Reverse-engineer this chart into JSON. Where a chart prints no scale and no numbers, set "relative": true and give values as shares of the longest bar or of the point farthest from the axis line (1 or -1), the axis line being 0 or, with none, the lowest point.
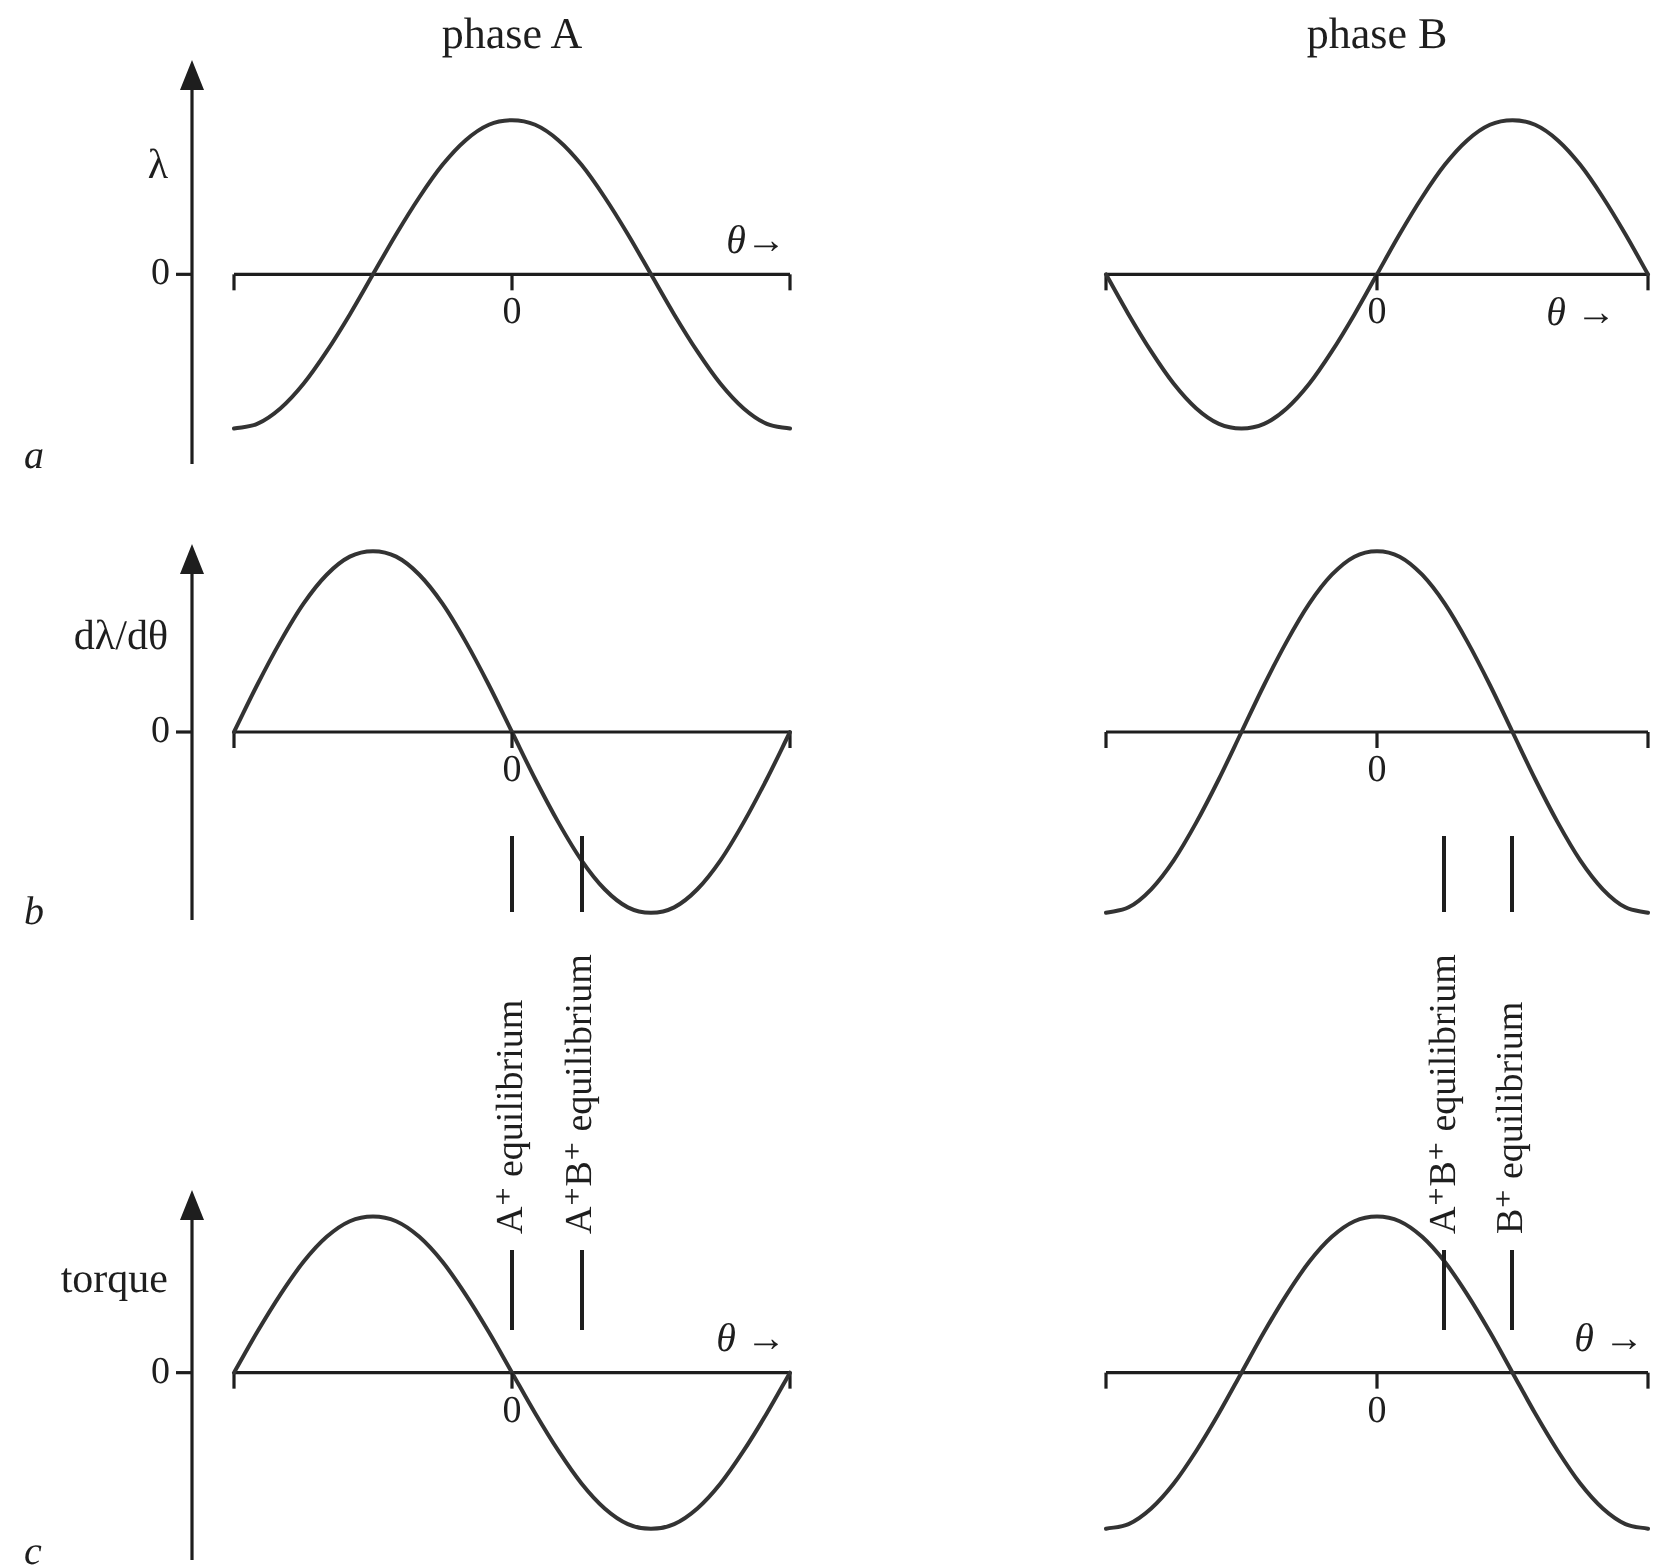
{
  "chart_data": [
    {
      "type": "line",
      "title": "phase A",
      "xlabel": "θ→",
      "ylabel": "λ",
      "annotations": [
        "a",
        "0",
        "0"
      ],
      "relative": true,
      "categories": [
        null,
        null,
        null,
        null,
        null,
        null,
        null,
        null,
        null,
        null,
        null,
        null,
        null,
        null,
        null,
        null,
        null,
        null,
        null,
        null,
        null,
        null,
        null,
        null,
        null
      ],
      "values": [
        -1,
        -0.97,
        -0.87,
        -0.71,
        -0.5,
        -0.26,
        0,
        0.26,
        0.5,
        0.71,
        0.87,
        0.97,
        1,
        0.97,
        0.87,
        0.71,
        0.5,
        0.26,
        0,
        -0.26,
        -0.5,
        -0.71,
        -0.87,
        -0.97,
        -1
      ],
      "color": "#333333"
    },
    {
      "type": "line",
      "title": "phase B",
      "xlabel": "θ →",
      "annotations": [
        "0"
      ],
      "relative": true,
      "categories": [
        null,
        null,
        null,
        null,
        null,
        null,
        null,
        null,
        null,
        null,
        null,
        null,
        null,
        null,
        null,
        null,
        null,
        null,
        null,
        null,
        null,
        null,
        null,
        null,
        null
      ],
      "values": [
        0,
        -0.26,
        -0.5,
        -0.71,
        -0.87,
        -0.97,
        -1,
        -0.97,
        -0.87,
        -0.71,
        -0.5,
        -0.26,
        0,
        0.26,
        0.5,
        0.71,
        0.87,
        0.97,
        1,
        0.97,
        0.87,
        0.71,
        0.5,
        0.26,
        0
      ],
      "color": "#333333"
    },
    {
      "type": "line",
      "ylabel": "dλ/dθ",
      "annotations": [
        "b",
        "0",
        "0"
      ],
      "relative": true,
      "categories": [
        null,
        null,
        null,
        null,
        null,
        null,
        null,
        null,
        null,
        null,
        null,
        null,
        null,
        null,
        null,
        null,
        null,
        null,
        null,
        null,
        null,
        null,
        null,
        null,
        null
      ],
      "values": [
        0,
        0.26,
        0.5,
        0.71,
        0.87,
        0.97,
        1,
        0.97,
        0.87,
        0.71,
        0.5,
        0.26,
        0,
        -0.26,
        -0.5,
        -0.71,
        -0.87,
        -0.97,
        -1,
        -0.97,
        -0.87,
        -0.71,
        -0.5,
        -0.26,
        0
      ],
      "color": "#333333"
    },
    {
      "type": "line",
      "annotations": [
        "0"
      ],
      "relative": true,
      "categories": [
        null,
        null,
        null,
        null,
        null,
        null,
        null,
        null,
        null,
        null,
        null,
        null,
        null,
        null,
        null,
        null,
        null,
        null,
        null,
        null,
        null,
        null,
        null,
        null,
        null
      ],
      "values": [
        -1,
        -0.97,
        -0.87,
        -0.71,
        -0.5,
        -0.26,
        0,
        0.26,
        0.5,
        0.71,
        0.87,
        0.97,
        1,
        0.97,
        0.87,
        0.71,
        0.5,
        0.26,
        0,
        -0.26,
        -0.5,
        -0.71,
        -0.87,
        -0.97,
        -1
      ],
      "color": "#333333"
    },
    {
      "type": "line",
      "xlabel": "θ →",
      "ylabel": "torque",
      "annotations": [
        "c",
        "0",
        "0",
        "A⁺ equilibrium",
        "A⁺B⁺ equilibrium"
      ],
      "relative": true,
      "categories": [
        null,
        null,
        null,
        null,
        null,
        null,
        null,
        null,
        null,
        null,
        null,
        null,
        null,
        null,
        null,
        null,
        null,
        null,
        null,
        null,
        null,
        null,
        null,
        null,
        null
      ],
      "values": [
        0,
        0.26,
        0.5,
        0.71,
        0.87,
        0.97,
        1,
        0.97,
        0.87,
        0.71,
        0.5,
        0.26,
        0,
        -0.26,
        -0.5,
        -0.71,
        -0.87,
        -0.97,
        -1,
        -0.97,
        -0.87,
        -0.71,
        -0.5,
        -0.26,
        0
      ],
      "color": "#333333"
    },
    {
      "type": "line",
      "xlabel": "θ →",
      "annotations": [
        "0",
        "A⁺B⁺ equilibrium",
        "B⁺ equilibrium"
      ],
      "relative": true,
      "categories": [
        null,
        null,
        null,
        null,
        null,
        null,
        null,
        null,
        null,
        null,
        null,
        null,
        null,
        null,
        null,
        null,
        null,
        null,
        null,
        null,
        null,
        null,
        null,
        null,
        null
      ],
      "values": [
        -1,
        -0.97,
        -0.87,
        -0.71,
        -0.5,
        -0.26,
        0,
        0.26,
        0.5,
        0.71,
        0.87,
        0.97,
        1,
        0.97,
        0.87,
        0.71,
        0.5,
        0.26,
        0,
        -0.26,
        -0.5,
        -0.71,
        -0.87,
        -0.97,
        -1
      ],
      "color": "#333333"
    }
  ]
}
